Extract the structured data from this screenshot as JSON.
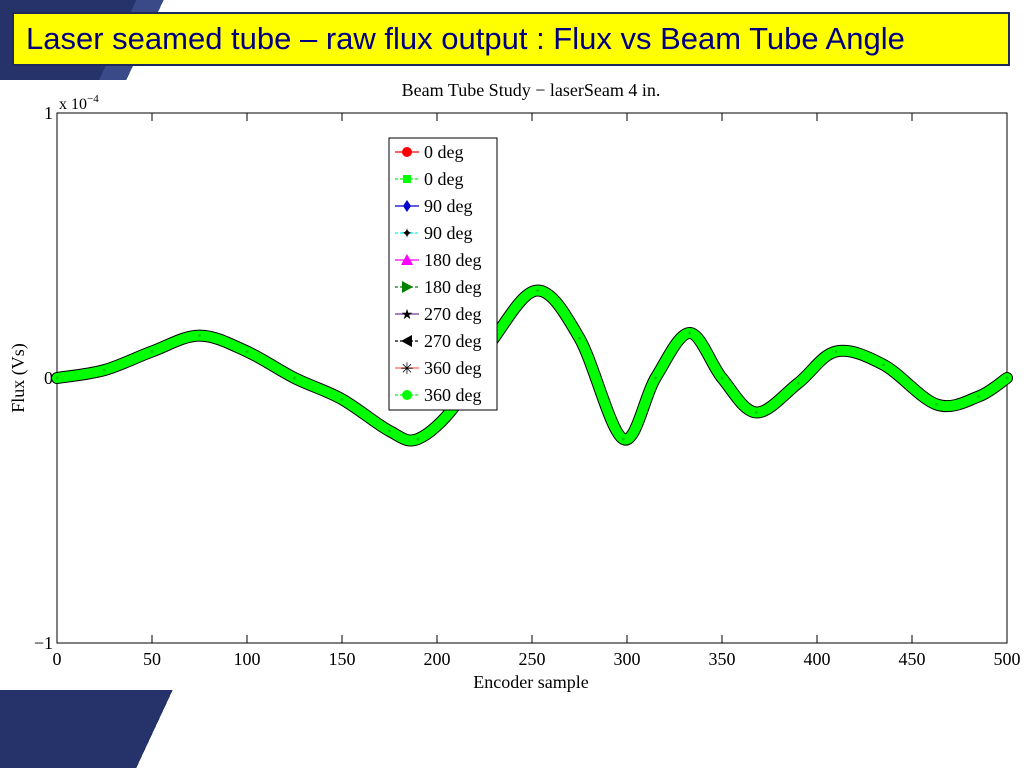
{
  "slide": {
    "title": "Laser seamed tube – raw flux output : Flux vs Beam Tube Angle"
  },
  "colors": {
    "title_bg": "#ffff00",
    "title_text": "#000080",
    "decor": "#26336b",
    "visible_series": "#00ff00"
  },
  "chart_data": {
    "type": "line",
    "title": "Beam Tube Study − laserSeam 4 in.",
    "xlabel": "Encoder sample",
    "ylabel": "Flux (Vs)",
    "y_exponent_label": "x 10",
    "y_exponent_power": "−4",
    "xlim": [
      0,
      500
    ],
    "ylim": [
      -1,
      1
    ],
    "x_ticks": [
      0,
      50,
      100,
      150,
      200,
      250,
      300,
      350,
      400,
      450,
      500
    ],
    "y_ticks": [
      -1,
      0,
      1
    ],
    "y_tick_labels": [
      "−1",
      "0",
      "1"
    ],
    "legend_position": "top-center",
    "x": [
      0,
      25,
      50,
      75,
      100,
      125,
      150,
      175,
      190,
      210,
      230,
      253,
      275,
      298,
      315,
      333,
      350,
      368,
      390,
      410,
      435,
      463,
      485,
      500
    ],
    "y": [
      0.0,
      0.03,
      0.1,
      0.16,
      0.1,
      0.0,
      -0.08,
      -0.2,
      -0.23,
      -0.1,
      0.15,
      0.33,
      0.15,
      -0.23,
      0.0,
      0.17,
      0.0,
      -0.13,
      -0.02,
      0.1,
      0.05,
      -0.1,
      -0.07,
      0.0
    ],
    "series": [
      {
        "name": "0 deg",
        "color": "#ff0000",
        "marker": "circle"
      },
      {
        "name": "0 deg",
        "color": "#00ff00",
        "marker": "square"
      },
      {
        "name": "90 deg",
        "color": "#0000cc",
        "marker": "diamond"
      },
      {
        "name": "90 deg",
        "color": "#00ffff",
        "marker": "star"
      },
      {
        "name": "180 deg",
        "color": "#ff00ff",
        "marker": "triangle-up"
      },
      {
        "name": "180 deg",
        "color": "#008000",
        "marker": "triangle-right"
      },
      {
        "name": "270 deg",
        "color": "#7b30a0",
        "marker": "pentagram"
      },
      {
        "name": "270 deg",
        "color": "#000000",
        "marker": "triangle-left"
      },
      {
        "name": "360 deg",
        "color": "#ff6a55",
        "marker": "asterisk"
      },
      {
        "name": "360 deg",
        "color": "#00ff00",
        "marker": "circle"
      }
    ]
  }
}
